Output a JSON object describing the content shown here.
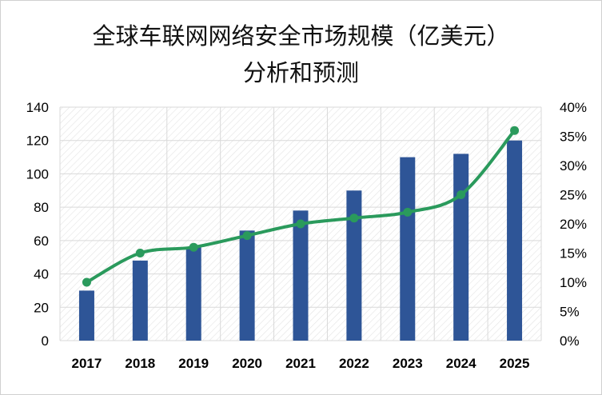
{
  "chart_data": {
    "type": "bar+line",
    "title_line1": "全球车联网网络安全市场规模（亿美元）",
    "title_line2": "分析和预测",
    "categories": [
      "2017",
      "2018",
      "2019",
      "2020",
      "2021",
      "2022",
      "2023",
      "2024",
      "2025"
    ],
    "series": [
      {
        "type": "bar",
        "axis": "left",
        "values": [
          30,
          48,
          56,
          66,
          78,
          90,
          110,
          112,
          120
        ]
      },
      {
        "type": "line",
        "axis": "right",
        "values": [
          10,
          15,
          16,
          18,
          20,
          21,
          22,
          25,
          36
        ],
        "unit": "%"
      }
    ],
    "y_left": {
      "lim": [
        0,
        140
      ],
      "ticks": [
        "0",
        "20",
        "40",
        "60",
        "80",
        "100",
        "120",
        "140"
      ]
    },
    "y_right": {
      "lim": [
        0,
        40
      ],
      "ticks": [
        "0%",
        "5%",
        "10%",
        "15%",
        "20%",
        "25%",
        "30%",
        "35%",
        "40%"
      ]
    },
    "grid": true,
    "colors": {
      "bar": "#2E5597",
      "line": "#2A9A5C",
      "grid": "#D9D9D9",
      "hatch": "#E3E3E3"
    }
  }
}
